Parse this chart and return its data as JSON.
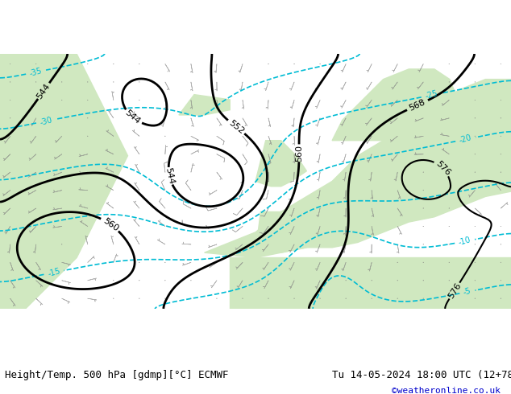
{
  "title_left": "Height/Temp. 500 hPa [gdmp][°C] ECMWF",
  "title_right": "Tu 14-05-2024 18:00 UTC (12+78)",
  "watermark": "©weatheronline.co.uk",
  "bg_color": "#e8e8e8",
  "land_color": "#d0e8c0",
  "sea_color": "#dcdcdc",
  "figsize": [
    6.34,
    4.9
  ],
  "dpi": 100
}
